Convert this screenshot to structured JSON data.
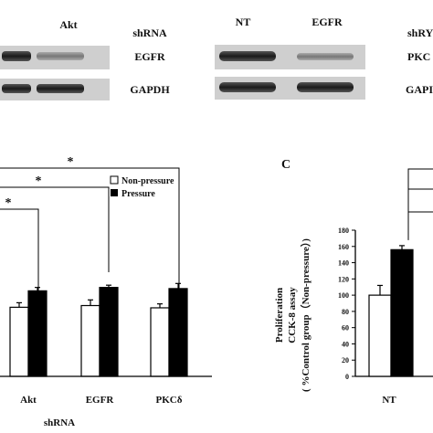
{
  "blots": {
    "left": {
      "lane_headers": [
        "",
        "Akt"
      ],
      "row_labels": [
        "EGFR",
        "GAPDH"
      ]
    },
    "middle": {
      "shrna_label": "shRNA",
      "lane_headers": [
        "NT",
        "EGFR"
      ],
      "row_labels": [
        "EGFR",
        "GAPDH"
      ]
    },
    "right": {
      "shrna_label": "shRY",
      "row_labels": [
        "PKC",
        "GAPI"
      ]
    }
  },
  "panel_c_label": "C",
  "chart_data": [
    {
      "type": "bar",
      "panel": "B",
      "categories": [
        "Akt",
        "EGFR",
        "PKCδ"
      ],
      "xlabel": "shRNA",
      "legend": {
        "placement": "top-right",
        "entries": [
          "Non-pressure",
          "Pressure"
        ]
      },
      "series": [
        {
          "name": "Non-pressure",
          "color": "#ffffff",
          "values": [
            122,
            125,
            121
          ],
          "errors": [
            8,
            10,
            7
          ]
        },
        {
          "name": "Pressure",
          "color": "#000000",
          "values": [
            151,
            157,
            155
          ],
          "errors": [
            6,
            4,
            9
          ]
        }
      ],
      "significance_marker": "*",
      "significance_brackets": 3
    },
    {
      "type": "bar",
      "panel": "C",
      "categories": [
        "NT"
      ],
      "ylabel_lines": [
        "Proliferation",
        "CCK-8 assay",
        "( %Control group（Non-pressure）)"
      ],
      "ylim": [
        0,
        180
      ],
      "yticks": [
        0,
        20,
        40,
        60,
        80,
        100,
        120,
        140,
        160,
        180
      ],
      "series": [
        {
          "name": "Non-pressure",
          "color": "#ffffff",
          "values": [
            100
          ],
          "errors": [
            12
          ]
        },
        {
          "name": "Pressure",
          "color": "#000000",
          "values": [
            156
          ],
          "errors": [
            5
          ]
        }
      ]
    }
  ]
}
